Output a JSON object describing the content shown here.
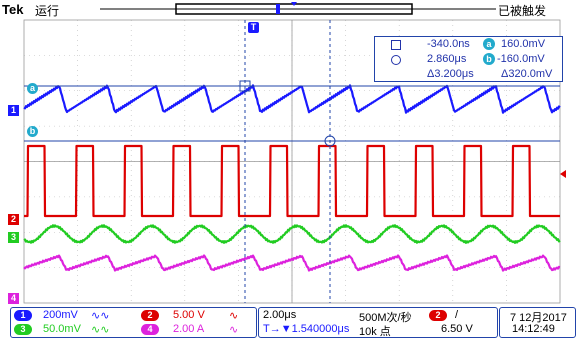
{
  "header": {
    "brand": "Tek",
    "run_status": "运行",
    "trigger_status": "已被触发"
  },
  "markers": {
    "trigger_position": "T",
    "ch1_label": "1",
    "cursor_a": "a",
    "cursor_b": "b",
    "ch2_label": "2",
    "ch3_label": "3",
    "ch4_label": "4"
  },
  "cursor_readout": {
    "a_time": "-340.0ns",
    "a_value": "160.0mV",
    "b_time": "2.860μs",
    "b_value": "-160.0mV",
    "delta_time": "Δ3.200μs",
    "delta_value": "Δ320.0mV",
    "badge_a": "a",
    "badge_b": "b"
  },
  "channels": [
    {
      "num": "1",
      "scale": "200mV",
      "coupling": "∿∿",
      "color": "#1a1aff"
    },
    {
      "num": "2",
      "scale": "5.00 V",
      "coupling": "∿",
      "color": "#dd0000"
    },
    {
      "num": "3",
      "scale": "50.0mV",
      "coupling": "∿∿",
      "color": "#22cc22"
    },
    {
      "num": "4",
      "scale": "2.00 A",
      "coupling": "∿",
      "color": "#dd22dd"
    }
  ],
  "timebase": {
    "scale": "2.00μs",
    "position": "T→▼1.540000μs",
    "sample_rate": "500M次/秒",
    "record_length": "10k 点"
  },
  "trigger": {
    "channel": "2",
    "slope": "/",
    "level": "6.50 V"
  },
  "datetime": {
    "date": "7 12月2017",
    "time": "14:12:49"
  },
  "colors": {
    "ch1": "#1a1aff",
    "ch2": "#dd0000",
    "ch3": "#22cc22",
    "ch4": "#dd22dd",
    "grid": "#bbbbbb",
    "cursor": "#2244aa"
  }
}
